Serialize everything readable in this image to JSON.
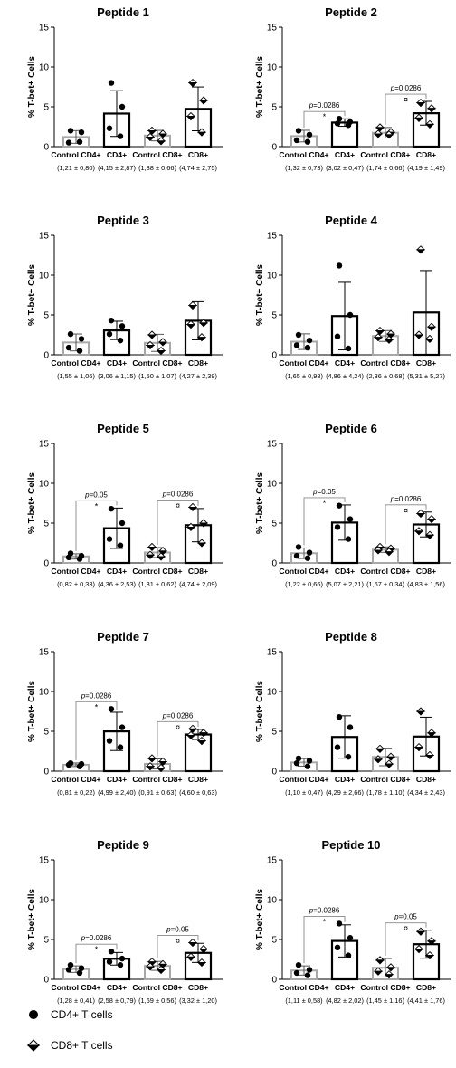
{
  "chart_data": [
    {
      "type": "bar",
      "title": "Peptide 1",
      "ylabel": "% T-bet+ Cells",
      "ylim": [
        0,
        15
      ],
      "yticks": [
        0,
        5,
        10,
        15
      ],
      "categories": [
        "Control CD4+",
        "CD4+",
        "Control CD8+",
        "CD8+"
      ],
      "stats": [
        "(1,21 ± 0,80)",
        "(4,15 ± 2,87)",
        "(1,38 ± 0,66)",
        "(4,74 ± 2,75)"
      ],
      "means": [
        1.21,
        4.15,
        1.38,
        4.74
      ],
      "sds": [
        0.8,
        2.87,
        0.66,
        2.75
      ],
      "points": [
        [
          2.0,
          1.8,
          0.5,
          0.6
        ],
        [
          8.0,
          5.0,
          2.3,
          1.3
        ],
        [
          2.0,
          1.6,
          1.2,
          0.7
        ],
        [
          8.0,
          5.8,
          3.8,
          1.8
        ]
      ],
      "comparisons": []
    },
    {
      "type": "bar",
      "title": "Peptide 2",
      "ylabel": "% T-bet+ Cells",
      "ylim": [
        0,
        15
      ],
      "yticks": [
        0,
        5,
        10,
        15
      ],
      "categories": [
        "Control CD4+",
        "CD4+",
        "Control CD8+",
        "CD8+"
      ],
      "stats": [
        "(1,32 ± 0,73)",
        "(3,02 ± 0,47)",
        "(1,74 ± 0,66)",
        "(4,19 ± 1,49)"
      ],
      "means": [
        1.32,
        3.02,
        1.74,
        4.19
      ],
      "sds": [
        0.73,
        0.47,
        0.66,
        1.49
      ],
      "points": [
        [
          2.0,
          1.5,
          0.8,
          0.6
        ],
        [
          3.5,
          3.1,
          2.9,
          2.7
        ],
        [
          2.4,
          1.8,
          1.6,
          1.5
        ],
        [
          5.5,
          4.8,
          3.6,
          2.8
        ]
      ],
      "comparisons": [
        {
          "from": 0,
          "to": 1,
          "p": "p=0.0286",
          "mark": "*"
        },
        {
          "from": 2,
          "to": 3,
          "p": "p=0.0286",
          "mark": "¤"
        }
      ]
    },
    {
      "type": "bar",
      "title": "Peptide 3",
      "ylabel": "% T-bet+ Cells",
      "ylim": [
        0,
        15
      ],
      "yticks": [
        0,
        5,
        10,
        15
      ],
      "categories": [
        "Control CD4+",
        "CD4+",
        "Control CD8+",
        "CD8+"
      ],
      "stats": [
        "(1,55 ± 1,06)",
        "(3,06 ± 1,15)",
        "(1,50 ± 1,07)",
        "(4,27 ± 2,39)"
      ],
      "means": [
        1.55,
        3.06,
        1.5,
        4.27
      ],
      "sds": [
        1.06,
        1.15,
        1.07,
        2.39
      ],
      "points": [
        [
          2.6,
          2.0,
          0.9,
          0.5
        ],
        [
          4.3,
          3.6,
          2.6,
          1.8
        ],
        [
          2.5,
          1.6,
          1.2,
          0.5
        ],
        [
          6.2,
          4.0,
          3.8,
          2.2
        ]
      ],
      "comparisons": []
    },
    {
      "type": "bar",
      "title": "Peptide 4",
      "ylabel": "% T-bet+ Cells",
      "ylim": [
        0,
        15
      ],
      "yticks": [
        0,
        5,
        10,
        15
      ],
      "categories": [
        "Control CD4+",
        "CD4+",
        "Control CD8+",
        "CD8+"
      ],
      "stats": [
        "(1,65 ± 0,98)",
        "(4,86 ± 4,24)",
        "(2,36 ± 0,68)",
        "(5,31 ± 5,27)"
      ],
      "means": [
        1.65,
        4.86,
        2.36,
        5.31
      ],
      "sds": [
        0.98,
        4.24,
        0.68,
        5.27
      ],
      "points": [
        [
          2.5,
          1.8,
          1.2,
          0.9
        ],
        [
          11.2,
          5.0,
          2.3,
          0.8
        ],
        [
          3.0,
          2.6,
          2.2,
          1.9
        ],
        [
          13.2,
          3.5,
          2.5,
          2.0
        ]
      ],
      "comparisons": []
    },
    {
      "type": "bar",
      "title": "Peptide 5",
      "ylabel": "% T-bet+ Cells",
      "ylim": [
        0,
        15
      ],
      "yticks": [
        0,
        5,
        10,
        15
      ],
      "categories": [
        "Control CD4+",
        "CD4+",
        "Control CD8+",
        "CD8+"
      ],
      "stats": [
        "(0,82 ± 0,33)",
        "(4,36 ± 2,53)",
        "(1,31 ± 0,62)",
        "(4,74 ± 2,09)"
      ],
      "means": [
        0.82,
        4.36,
        1.31,
        4.74
      ],
      "sds": [
        0.33,
        2.53,
        0.62,
        2.09
      ],
      "points": [
        [
          1.2,
          0.9,
          0.7,
          0.5
        ],
        [
          6.8,
          5.0,
          3.0,
          2.2
        ],
        [
          2.0,
          1.5,
          1.0,
          0.8
        ],
        [
          7.0,
          5.0,
          4.5,
          2.5
        ]
      ],
      "comparisons": [
        {
          "from": 0,
          "to": 1,
          "p": "p=0.05",
          "mark": "*"
        },
        {
          "from": 2,
          "to": 3,
          "p": "p=0.0286",
          "mark": "¤"
        }
      ]
    },
    {
      "type": "bar",
      "title": "Peptide 6",
      "ylabel": "% T-bet+ Cells",
      "ylim": [
        0,
        15
      ],
      "yticks": [
        0,
        5,
        10,
        15
      ],
      "categories": [
        "Control CD4+",
        "CD4+",
        "Control CD8+",
        "CD8+"
      ],
      "stats": [
        "(1,22 ± 0,66)",
        "(5,07 ± 2,21)",
        "(1,67 ± 0,34)",
        "(4,83 ± 1,56)"
      ],
      "means": [
        1.22,
        5.07,
        1.67,
        4.83
      ],
      "sds": [
        0.66,
        2.21,
        0.34,
        1.56
      ],
      "points": [
        [
          2.0,
          1.3,
          0.9,
          0.6
        ],
        [
          7.2,
          5.5,
          4.5,
          3.0
        ],
        [
          2.0,
          1.8,
          1.6,
          1.4
        ],
        [
          6.2,
          5.5,
          4.0,
          3.5
        ]
      ],
      "comparisons": [
        {
          "from": 0,
          "to": 1,
          "p": "p=0.05",
          "mark": "*"
        },
        {
          "from": 2,
          "to": 3,
          "p": "p=0.0286",
          "mark": "¤"
        }
      ]
    },
    {
      "type": "bar",
      "title": "Peptide 7",
      "ylabel": "% T-bet+ Cells",
      "ylim": [
        0,
        15
      ],
      "yticks": [
        0,
        5,
        10,
        15
      ],
      "categories": [
        "Control CD4+",
        "CD4+",
        "Control CD8+",
        "CD8+"
      ],
      "stats": [
        "(0,81 ± 0,22)",
        "(4,99 ± 2,40)",
        "(0,91 ± 0,63)",
        "(4,60 ± 0,63)"
      ],
      "means": [
        0.81,
        4.99,
        0.91,
        4.6
      ],
      "sds": [
        0.22,
        2.4,
        0.63,
        0.63
      ],
      "points": [
        [
          1.0,
          0.9,
          0.8,
          0.6
        ],
        [
          7.8,
          5.5,
          3.8,
          3.0
        ],
        [
          1.6,
          1.2,
          0.6,
          0.4
        ],
        [
          5.3,
          4.8,
          4.5,
          3.8
        ]
      ],
      "comparisons": [
        {
          "from": 0,
          "to": 1,
          "p": "p=0.0286",
          "mark": "*"
        },
        {
          "from": 2,
          "to": 3,
          "p": "p=0.0286",
          "mark": "¤"
        }
      ]
    },
    {
      "type": "bar",
      "title": "Peptide 8",
      "ylabel": "% T-bet+ Cells",
      "ylim": [
        0,
        15
      ],
      "yticks": [
        0,
        5,
        10,
        15
      ],
      "categories": [
        "Control CD4+",
        "CD4+",
        "Control CD8+",
        "CD8+"
      ],
      "stats": [
        "(1,10 ± 0,47)",
        "(4,29 ± 2,66)",
        "(1,78 ± 1,10)",
        "(4,34 ± 2,43)"
      ],
      "means": [
        1.1,
        4.29,
        1.78,
        4.34
      ],
      "sds": [
        0.47,
        2.66,
        1.1,
        2.43
      ],
      "points": [
        [
          1.6,
          1.3,
          1.0,
          0.6
        ],
        [
          6.8,
          5.5,
          3.0,
          1.8
        ],
        [
          2.8,
          1.8,
          1.5,
          0.9
        ],
        [
          7.5,
          4.8,
          3.0,
          2.0
        ]
      ],
      "comparisons": []
    },
    {
      "type": "bar",
      "title": "Peptide 9",
      "ylabel": "% T-bet+ Cells",
      "ylim": [
        0,
        15
      ],
      "yticks": [
        0,
        5,
        10,
        15
      ],
      "categories": [
        "Control CD4+",
        "CD4+",
        "Control CD8+",
        "CD8+"
      ],
      "stats": [
        "(1,28 ± 0,41)",
        "(2,58 ± 0,79)",
        "(1,69 ± 0,56)",
        "(3,32 ± 1,20)"
      ],
      "means": [
        1.28,
        2.58,
        1.69,
        3.32
      ],
      "sds": [
        0.41,
        0.79,
        0.56,
        1.2
      ],
      "points": [
        [
          1.8,
          1.4,
          1.2,
          0.8
        ],
        [
          3.5,
          2.6,
          2.2,
          1.8
        ],
        [
          2.2,
          1.9,
          1.6,
          1.2
        ],
        [
          4.6,
          3.8,
          2.8,
          2.1
        ]
      ],
      "comparisons": [
        {
          "from": 0,
          "to": 1,
          "p": "p=0.0286",
          "mark": "*"
        },
        {
          "from": 2,
          "to": 3,
          "p": "p=0.05",
          "mark": "¤"
        }
      ]
    },
    {
      "type": "bar",
      "title": "Peptide 10",
      "ylabel": "% T-bet+ Cells",
      "ylim": [
        0,
        15
      ],
      "yticks": [
        0,
        5,
        10,
        15
      ],
      "categories": [
        "Control CD4+",
        "CD4+",
        "Control CD8+",
        "CD8+"
      ],
      "stats": [
        "(1,11 ± 0,58)",
        "(4,82 ± 2,02)",
        "(1,45 ± 1,16)",
        "(4,41 ± 1,76)"
      ],
      "means": [
        1.11,
        4.82,
        1.45,
        4.41
      ],
      "sds": [
        0.58,
        2.02,
        1.16,
        1.76
      ],
      "points": [
        [
          1.8,
          1.2,
          0.8,
          0.5
        ],
        [
          7.0,
          5.2,
          4.0,
          3.0
        ],
        [
          2.4,
          1.5,
          1.0,
          0.6
        ],
        [
          6.0,
          4.8,
          3.8,
          3.0
        ]
      ],
      "comparisons": [
        {
          "from": 0,
          "to": 1,
          "p": "p=0.0286",
          "mark": "*"
        },
        {
          "from": 2,
          "to": 3,
          "p": "p=0.05",
          "mark": "¤"
        }
      ]
    }
  ],
  "legend": [
    {
      "label": "CD4+ T cells",
      "marker": "filled-circle-icon"
    },
    {
      "label": "CD8+ T cells",
      "marker": "half-filled-diamond-icon"
    }
  ],
  "colors": {
    "control_bar": "#a8a8a8",
    "treated_bar": "#000000",
    "points": "#000000"
  }
}
